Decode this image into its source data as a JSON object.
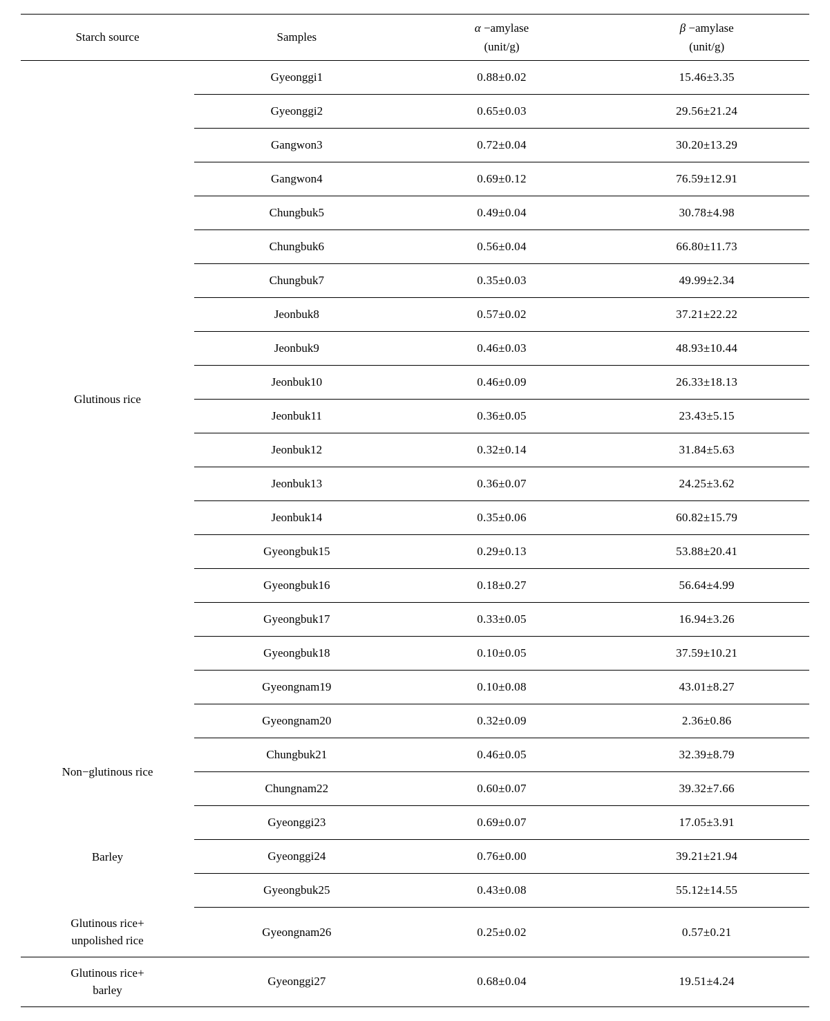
{
  "header": {
    "starch_source": "Starch source",
    "samples": "Samples",
    "alpha_line1_prefix": "α",
    "alpha_line1_rest": " −amylase",
    "alpha_line2": "(unit/g)",
    "beta_line1_prefix": "β",
    "beta_line1_rest": " −amylase",
    "beta_line2": "(unit/g)"
  },
  "groups": [
    {
      "source": "Glutinous rice",
      "rows": [
        {
          "sample": "Gyeonggi1",
          "alpha": "0.88±0.02",
          "beta": "15.46±3.35"
        },
        {
          "sample": "Gyeonggi2",
          "alpha": "0.65±0.03",
          "beta": "29.56±21.24"
        },
        {
          "sample": "Gangwon3",
          "alpha": "0.72±0.04",
          "beta": "30.20±13.29"
        },
        {
          "sample": "Gangwon4",
          "alpha": "0.69±0.12",
          "beta": "76.59±12.91"
        },
        {
          "sample": "Chungbuk5",
          "alpha": "0.49±0.04",
          "beta": "30.78±4.98"
        },
        {
          "sample": "Chungbuk6",
          "alpha": "0.56±0.04",
          "beta": "66.80±11.73"
        },
        {
          "sample": "Chungbuk7",
          "alpha": "0.35±0.03",
          "beta": "49.99±2.34"
        },
        {
          "sample": "Jeonbuk8",
          "alpha": "0.57±0.02",
          "beta": "37.21±22.22"
        },
        {
          "sample": "Jeonbuk9",
          "alpha": "0.46±0.03",
          "beta": "48.93±10.44"
        },
        {
          "sample": "Jeonbuk10",
          "alpha": "0.46±0.09",
          "beta": "26.33±18.13"
        },
        {
          "sample": "Jeonbuk11",
          "alpha": "0.36±0.05",
          "beta": "23.43±5.15"
        },
        {
          "sample": "Jeonbuk12",
          "alpha": "0.32±0.14",
          "beta": "31.84±5.63"
        },
        {
          "sample": "Jeonbuk13",
          "alpha": "0.36±0.07",
          "beta": "24.25±3.62"
        },
        {
          "sample": "Jeonbuk14",
          "alpha": "0.35±0.06",
          "beta": "60.82±15.79"
        },
        {
          "sample": "Gyeongbuk15",
          "alpha": "0.29±0.13",
          "beta": "53.88±20.41"
        },
        {
          "sample": "Gyeongbuk16",
          "alpha": "0.18±0.27",
          "beta": "56.64±4.99"
        },
        {
          "sample": "Gyeongbuk17",
          "alpha": "0.33±0.05",
          "beta": "16.94±3.26"
        },
        {
          "sample": "Gyeongbuk18",
          "alpha": "0.10±0.05",
          "beta": "37.59±10.21"
        },
        {
          "sample": "Gyeongnam19",
          "alpha": "0.10±0.08",
          "beta": "43.01±8.27"
        },
        {
          "sample": "Gyeongnam20",
          "alpha": "0.32±0.09",
          "beta": "2.36±0.86"
        }
      ]
    },
    {
      "source": "Non−glutinous rice",
      "rows": [
        {
          "sample": "Chungbuk21",
          "alpha": "0.46±0.05",
          "beta": "32.39±8.79"
        },
        {
          "sample": "Chungnam22",
          "alpha": "0.60±0.07",
          "beta": "39.32±7.66"
        }
      ]
    },
    {
      "source": "Barley",
      "rows": [
        {
          "sample": "Gyeonggi23",
          "alpha": "0.69±0.07",
          "beta": "17.05±3.91"
        },
        {
          "sample": "Gyeonggi24",
          "alpha": "0.76±0.00",
          "beta": "39.21±21.94"
        },
        {
          "sample": "Gyeongbuk25",
          "alpha": "0.43±0.08",
          "beta": "55.12±14.55"
        }
      ]
    },
    {
      "source": "Glutinous rice+\nunpolished rice",
      "rows": [
        {
          "sample": "Gyeongnam26",
          "alpha": "0.25±0.02",
          "beta": "0.57±0.21"
        }
      ]
    },
    {
      "source": "Glutinous rice+\nbarley",
      "rows": [
        {
          "sample": "Gyeonggi27",
          "alpha": "0.68±0.04",
          "beta": "19.51±4.24"
        }
      ]
    }
  ]
}
